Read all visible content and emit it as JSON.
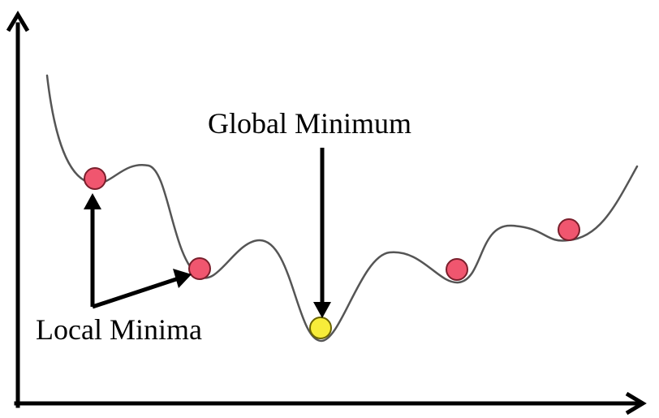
{
  "labels": {
    "global": "Global Minimum",
    "local": "Local Minima"
  },
  "colors": {
    "axis": "#000000",
    "curve": "#555555",
    "arrow": "#000000",
    "local_minimum_fill": "#f0566f",
    "local_minimum_stroke": "#7a1f2c",
    "global_minimum_fill": "#f7ec3a",
    "global_minimum_stroke": "#6b6400"
  },
  "minima": [
    {
      "kind": "local"
    },
    {
      "kind": "local"
    },
    {
      "kind": "global"
    },
    {
      "kind": "local"
    },
    {
      "kind": "local"
    }
  ]
}
